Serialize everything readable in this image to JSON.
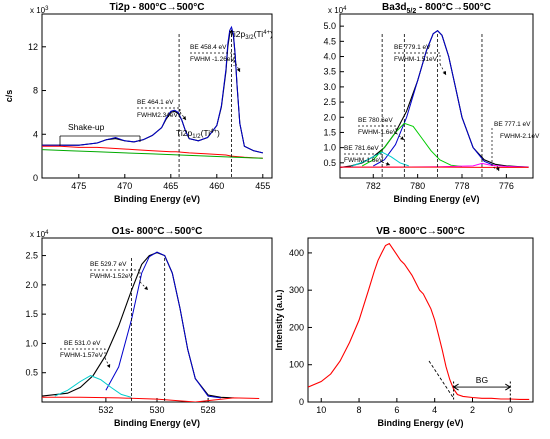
{
  "chart_data": [
    {
      "type": "line",
      "title": "Ti2p - 800°C→500°C",
      "xlabel": "Binding Energy (eV)",
      "ylabel": "c/s",
      "multiplier": "x 10",
      "multiplier_exp": "3",
      "xlim": [
        479,
        454
      ],
      "ylim": [
        0,
        15
      ],
      "xticks": [
        475,
        470,
        465,
        460,
        455
      ],
      "yticks": [
        0,
        4,
        8,
        12
      ],
      "series": [
        {
          "name": "",
          "color": "#000000",
          "x": [
            479,
            477,
            475,
            473,
            472,
            471,
            470,
            469,
            468,
            467,
            466,
            465.5,
            465,
            464.6,
            464.2,
            463.8,
            463.4,
            463,
            462,
            461,
            460,
            459.5,
            459,
            458.8,
            458.6,
            458.4,
            458.2,
            458,
            457.8,
            457.5,
            457,
            456,
            455
          ],
          "y": [
            3.0,
            3.0,
            3.0,
            3.2,
            3.5,
            3.6,
            3.4,
            3.3,
            3.5,
            3.9,
            4.6,
            5.4,
            6.0,
            6.1,
            5.9,
            5.3,
            4.3,
            3.6,
            3.4,
            3.7,
            4.8,
            6.5,
            9.8,
            12.0,
            13.2,
            13.5,
            13.0,
            11.2,
            8.5,
            5.0,
            2.9,
            2.5,
            2.3
          ]
        },
        {
          "name": "",
          "color": "#0000cc",
          "x": [
            479,
            475,
            473,
            472,
            471,
            470,
            469,
            468,
            467,
            466,
            465.5,
            465,
            464.6,
            464.2,
            463.8,
            463.4,
            463,
            462,
            461,
            460,
            459.5,
            459,
            458.8,
            458.6,
            458.4,
            458.2,
            458,
            457.8,
            457.5,
            457,
            456,
            455
          ],
          "y": [
            3.0,
            3.0,
            3.2,
            3.5,
            3.7,
            3.4,
            3.3,
            3.5,
            3.9,
            4.6,
            5.5,
            6.1,
            6.2,
            6.0,
            5.3,
            4.3,
            3.6,
            3.4,
            3.7,
            4.8,
            6.6,
            10.0,
            12.3,
            13.5,
            13.8,
            13.2,
            11.3,
            8.6,
            5.0,
            2.9,
            2.5,
            2.3
          ]
        },
        {
          "name": "",
          "color": "#ff0000",
          "x": [
            479,
            477,
            475,
            473,
            471,
            469,
            467,
            465,
            464.4,
            463,
            461,
            459,
            458.4,
            457,
            455
          ],
          "y": [
            2.9,
            2.9,
            2.8,
            2.8,
            2.7,
            2.6,
            2.5,
            2.4,
            2.4,
            2.3,
            2.2,
            2.1,
            2.0,
            1.9,
            1.8
          ]
        },
        {
          "name": "",
          "color": "#00aa00",
          "x": [
            479,
            476,
            473,
            470,
            467,
            464,
            461,
            458,
            455
          ],
          "y": [
            2.6,
            2.5,
            2.4,
            2.3,
            2.2,
            2.1,
            2.0,
            1.9,
            1.8
          ]
        }
      ],
      "vlines": [
        464.1,
        458.4
      ],
      "annotations": [
        {
          "text": "Shake-up"
        },
        {
          "text": "BE 464.1 eV"
        },
        {
          "text": "FWHM2.34eV"
        },
        {
          "text": "Ti2p",
          "sub": "1/2",
          "sup": "(Ti",
          "sup2": "4+",
          "end": ")"
        },
        {
          "text": "BE 458.4 eV"
        },
        {
          "text": "FWHM -1.26eV"
        },
        {
          "text": "Ti2p",
          "sub": "3/2",
          "sup": "(Ti",
          "sup2": "4+",
          "end": ")"
        }
      ]
    },
    {
      "type": "line",
      "title": "Ba3d",
      "title_sub": "5/2",
      "title_rest": " - 800°C→500°C",
      "xlabel": "Binding Energy (eV)",
      "ylabel": "",
      "multiplier": "x 10",
      "multiplier_exp": "4",
      "xlim": [
        783.5,
        774.8
      ],
      "ylim": [
        0,
        5.4
      ],
      "xticks": [
        782,
        780,
        778,
        776
      ],
      "yticks": [
        "0.5",
        "1.0",
        "1.5",
        "2.0",
        "2.5",
        "3.0",
        "3.5",
        "4.0",
        "4.5",
        "5.0"
      ],
      "series": [
        {
          "name": "",
          "color": "#000000",
          "x": [
            783.5,
            783,
            782.5,
            782,
            781.5,
            781,
            780.5,
            780,
            779.6,
            779.3,
            779.1,
            778.9,
            778.6,
            778.3,
            778,
            777.5,
            777,
            776.5,
            776,
            775.5,
            775
          ],
          "y": [
            0.35,
            0.4,
            0.5,
            0.7,
            1.0,
            1.5,
            2.2,
            3.2,
            4.2,
            4.75,
            4.85,
            4.7,
            4.0,
            3.0,
            2.0,
            1.0,
            0.6,
            0.45,
            0.4,
            0.38,
            0.36
          ]
        },
        {
          "name": "",
          "color": "#0000cc",
          "x": [
            782,
            781.5,
            781,
            780.5,
            780,
            779.6,
            779.3,
            779.1,
            778.9,
            778.6,
            778.3,
            778,
            777.5,
            777,
            776.5
          ],
          "y": [
            0.4,
            0.6,
            1.1,
            2.0,
            3.2,
            4.2,
            4.75,
            4.85,
            4.7,
            4.0,
            3.0,
            2.0,
            1.0,
            0.55,
            0.4
          ]
        },
        {
          "name": "",
          "color": "#00cc00",
          "x": [
            782.5,
            782,
            781.5,
            781,
            780.6,
            780.2,
            779.8,
            779.4,
            779,
            778.5,
            778
          ],
          "y": [
            0.4,
            0.6,
            1.0,
            1.5,
            1.8,
            1.7,
            1.3,
            0.9,
            0.6,
            0.42,
            0.38
          ]
        },
        {
          "name": "",
          "color": "#00cccc",
          "x": [
            783,
            782.4,
            782,
            781.6,
            781.2,
            780.8,
            780.4
          ],
          "y": [
            0.38,
            0.55,
            0.7,
            0.85,
            0.7,
            0.5,
            0.4
          ]
        },
        {
          "name": "",
          "color": "#ff00ff",
          "x": [
            783.5,
            781,
            779,
            777.5,
            777.1,
            776.7,
            776,
            775
          ],
          "y": [
            0.36,
            0.36,
            0.37,
            0.4,
            0.48,
            0.42,
            0.38,
            0.36
          ]
        },
        {
          "name": "",
          "color": "#ff0000",
          "x": [
            783.5,
            781,
            779,
            777,
            775
          ],
          "y": [
            0.36,
            0.36,
            0.36,
            0.35,
            0.35
          ]
        }
      ],
      "vlines": [
        781.6,
        780.6,
        779.1,
        777.1
      ],
      "annotations": [
        {
          "text": "BE 779.1 eV"
        },
        {
          "text": "FWHM-1.51eV"
        },
        {
          "text": "BE 780.6eV"
        },
        {
          "text": "FWHM-1.6eV"
        },
        {
          "text": "BE 781.6eV"
        },
        {
          "text": "FWHM-1.6eV"
        },
        {
          "text": "BE 777.1 eV"
        },
        {
          "text": "FWHM-2.1eV"
        }
      ]
    },
    {
      "type": "line",
      "title": "O1s- 800°C→500°C",
      "xlabel": "Binding Energy (eV)",
      "ylabel": "",
      "multiplier": "x 10",
      "multiplier_exp": "4",
      "xlim": [
        534.5,
        525.5
      ],
      "ylim": [
        0,
        2.8
      ],
      "xticks": [
        532,
        530,
        528
      ],
      "yticks": [
        "0.5",
        "1.0",
        "1.5",
        "2.0",
        "2.5"
      ],
      "series": [
        {
          "name": "",
          "color": "#000000",
          "x": [
            534.5,
            533.5,
            533,
            532.5,
            532,
            531.5,
            531,
            530.6,
            530.3,
            530,
            529.7,
            529.4,
            529.1,
            528.8,
            528.5,
            528,
            527.5,
            527
          ],
          "y": [
            0.1,
            0.15,
            0.25,
            0.45,
            0.8,
            1.3,
            1.9,
            2.35,
            2.5,
            2.55,
            2.5,
            2.2,
            1.6,
            0.9,
            0.4,
            0.12,
            0.08,
            0.07
          ]
        },
        {
          "name": "",
          "color": "#0000cc",
          "x": [
            532,
            531.5,
            531,
            530.6,
            530.3,
            530,
            529.7,
            529.4,
            529.1,
            528.8,
            528.5,
            528,
            527.5
          ],
          "y": [
            0.2,
            0.6,
            1.4,
            2.2,
            2.48,
            2.56,
            2.5,
            2.2,
            1.6,
            0.9,
            0.4,
            0.1,
            0.07
          ]
        },
        {
          "name": "",
          "color": "#00cccc",
          "x": [
            534,
            533.5,
            533,
            532.6,
            532.2,
            531.8,
            531.4,
            531
          ],
          "y": [
            0.1,
            0.2,
            0.35,
            0.45,
            0.38,
            0.25,
            0.13,
            0.08
          ]
        },
        {
          "name": "",
          "color": "#ff0000",
          "x": [
            534.5,
            533,
            531.5,
            530,
            528.5,
            527,
            526
          ],
          "y": [
            0.08,
            0.08,
            0.07,
            0.05,
            0.0,
            0.07,
            0.06
          ]
        }
      ],
      "vlines": [
        531.0,
        529.7
      ],
      "annotations": [
        {
          "text": "BE 529.7 eV"
        },
        {
          "text": "FWHM-1.52eV"
        },
        {
          "text": "BE 531.0 eV"
        },
        {
          "text": "FWHM-1.57eV"
        }
      ]
    },
    {
      "type": "line",
      "title": "VB - 800°C→500°C",
      "xlabel": "Binding Energy (eV)",
      "ylabel": "Intensity (a.u.)",
      "xlim": [
        10.7,
        -1.2
      ],
      "ylim": [
        0,
        440
      ],
      "xticks": [
        10,
        8,
        6,
        4,
        2,
        0
      ],
      "yticks": [
        0,
        100,
        200,
        300,
        400
      ],
      "series": [
        {
          "name": "",
          "color": "#ff0000",
          "x": [
            10.7,
            10,
            9.5,
            9,
            8.5,
            8,
            7.5,
            7.2,
            7,
            6.8,
            6.6,
            6.4,
            6.2,
            6,
            5.8,
            5.6,
            5.4,
            5.2,
            5,
            4.8,
            4.6,
            4.4,
            4.2,
            4,
            3.8,
            3.6,
            3.4,
            3.2,
            3,
            2.8,
            2.5,
            2,
            1.5,
            1,
            0.5,
            0,
            -0.5,
            -1
          ],
          "y": [
            40,
            55,
            75,
            110,
            160,
            220,
            300,
            350,
            380,
            400,
            420,
            425,
            410,
            395,
            380,
            370,
            355,
            340,
            320,
            300,
            290,
            270,
            250,
            220,
            180,
            140,
            95,
            60,
            35,
            20,
            15,
            12,
            10,
            10,
            8,
            8,
            7,
            7
          ]
        }
      ],
      "fit_line": {
        "color": "#000000",
        "x": [
          4.3,
          3.0
        ],
        "y": [
          110,
          10
        ]
      },
      "bg_range": [
        3.0,
        0.0
      ],
      "annotations": [
        {
          "text": "BG"
        }
      ]
    }
  ]
}
